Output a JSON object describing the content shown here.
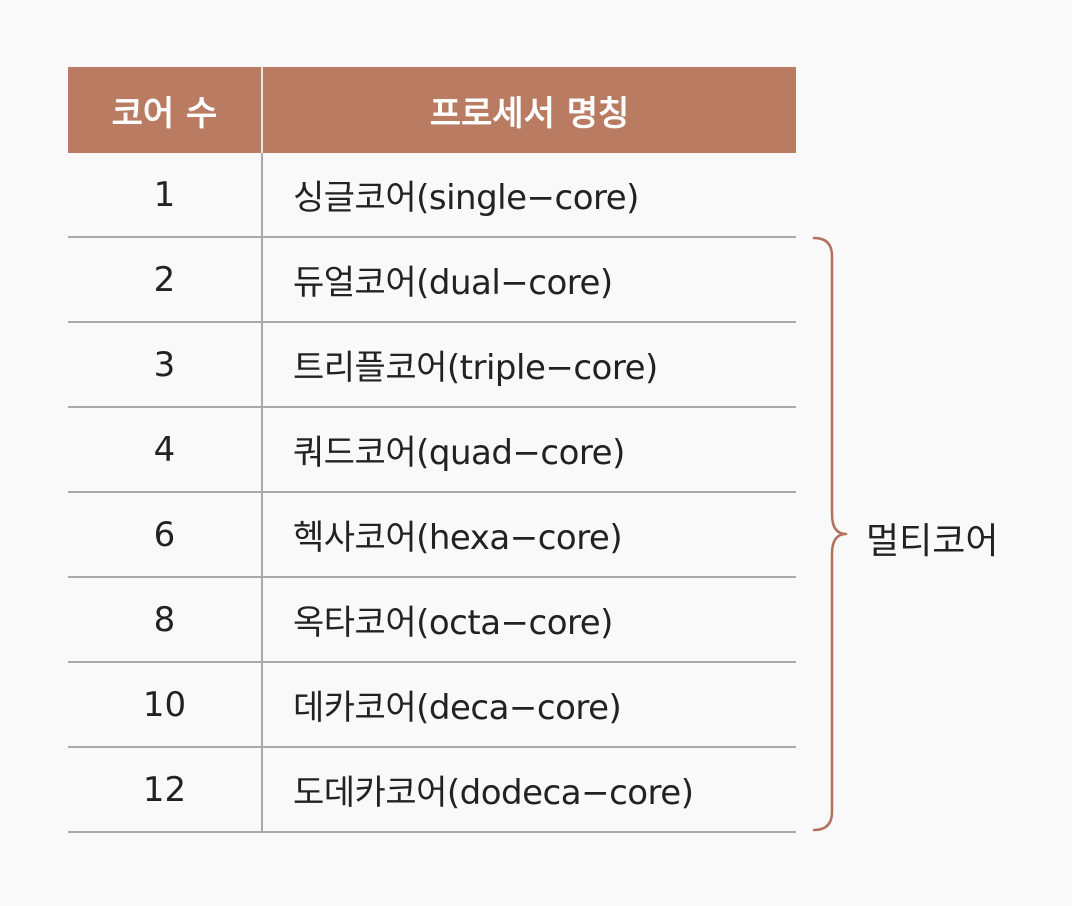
{
  "table": {
    "headers": {
      "cores": "코어 수",
      "name": "프로세서 명칭"
    },
    "rows": [
      {
        "cores": "1",
        "name": "싱글코어(single−core)"
      },
      {
        "cores": "2",
        "name": "듀얼코어(dual−core)"
      },
      {
        "cores": "3",
        "name": "트리플코어(triple−core)"
      },
      {
        "cores": "4",
        "name": "쿼드코어(quad−core)"
      },
      {
        "cores": "6",
        "name": "헥사코어(hexa−core)"
      },
      {
        "cores": "8",
        "name": "옥타코어(octa−core)"
      },
      {
        "cores": "10",
        "name": "데카코어(deca−core)"
      },
      {
        "cores": "12",
        "name": "도데카코어(dodeca−core)"
      }
    ]
  },
  "annotation": {
    "label": "멀티코어"
  },
  "colors": {
    "header_bg": "#b97c62",
    "header_text": "#ffffff",
    "brace": "#b2715b",
    "rule": "#a9a9a9"
  }
}
